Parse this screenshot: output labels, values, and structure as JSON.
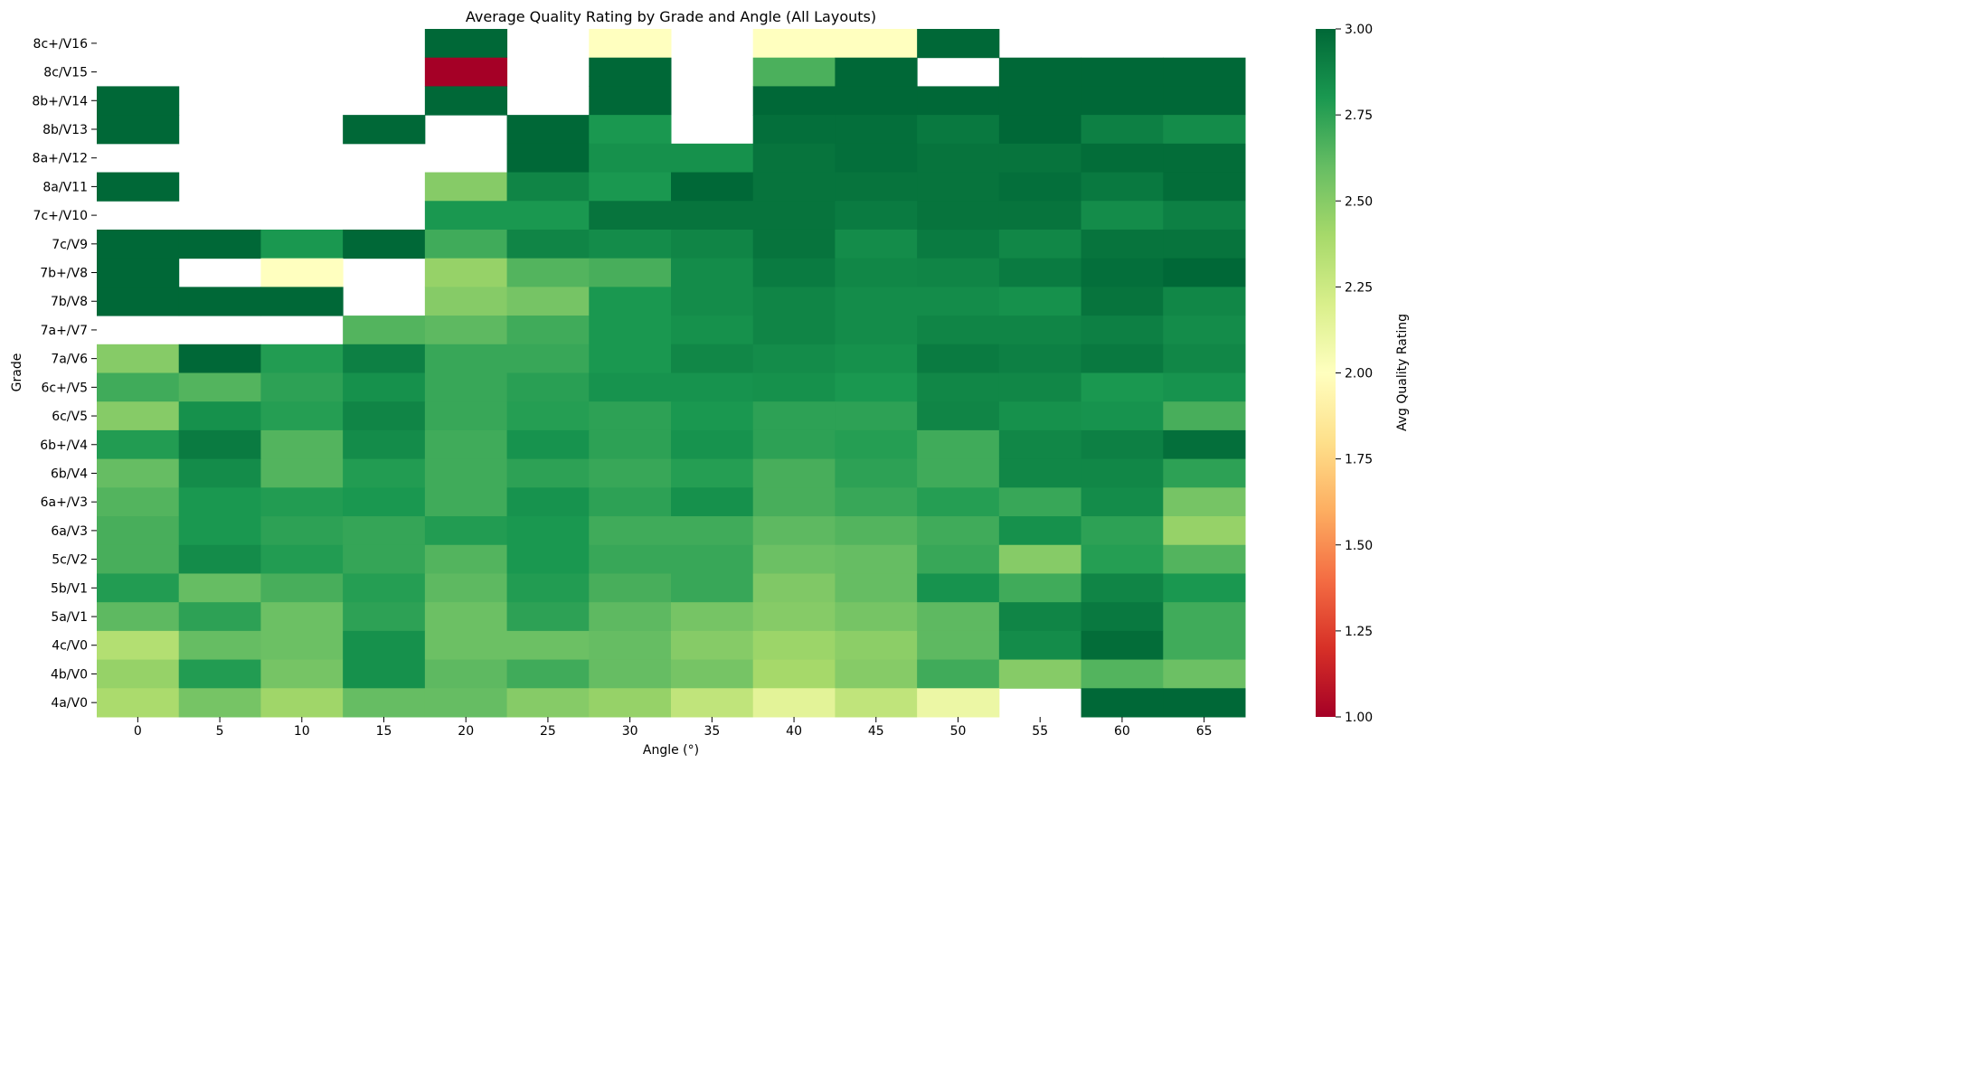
{
  "chart_data": {
    "type": "heatmap",
    "title": "Average Quality Rating by Grade and Angle (All Layouts)",
    "xlabel": "Angle (°)",
    "ylabel": "Grade",
    "x_categories": [
      "0",
      "5",
      "10",
      "15",
      "20",
      "25",
      "30",
      "35",
      "40",
      "45",
      "50",
      "55",
      "60",
      "65"
    ],
    "y_categories": [
      "8c+/V16",
      "8c/V15",
      "8b+/V14",
      "8b/V13",
      "8a+/V12",
      "8a/V11",
      "7c+/V10",
      "7c/V9",
      "7b+/V8",
      "7b/V8",
      "7a+/V7",
      "7a/V6",
      "6c+/V5",
      "6c/V5",
      "6b+/V4",
      "6b/V4",
      "6a+/V3",
      "6a/V3",
      "5c/V2",
      "5b/V1",
      "5a/V1",
      "4c/V0",
      "4b/V0",
      "4a/V0"
    ],
    "values": [
      [
        null,
        null,
        null,
        null,
        3.0,
        null,
        2.0,
        null,
        2.0,
        2.0,
        3.0,
        null,
        null,
        null
      ],
      [
        null,
        null,
        null,
        null,
        1.0,
        null,
        3.0,
        null,
        2.67,
        3.0,
        null,
        3.0,
        3.0,
        3.0
      ],
      [
        3.0,
        null,
        null,
        null,
        3.0,
        null,
        3.0,
        null,
        3.0,
        3.0,
        3.0,
        3.0,
        3.0,
        3.0
      ],
      [
        3.0,
        null,
        null,
        3.0,
        null,
        3.0,
        2.8,
        null,
        2.97,
        2.97,
        2.93,
        3.0,
        2.9,
        2.85
      ],
      [
        null,
        null,
        null,
        null,
        null,
        3.0,
        2.83,
        2.83,
        2.95,
        2.97,
        2.95,
        2.95,
        2.98,
        2.98
      ],
      [
        3.0,
        null,
        null,
        null,
        2.5,
        2.88,
        2.8,
        3.0,
        2.95,
        2.95,
        2.95,
        2.97,
        2.93,
        2.98
      ],
      [
        null,
        null,
        null,
        null,
        2.8,
        2.8,
        2.95,
        2.95,
        2.95,
        2.92,
        2.95,
        2.95,
        2.85,
        2.9
      ],
      [
        3.0,
        3.0,
        2.8,
        3.0,
        2.7,
        2.88,
        2.85,
        2.88,
        2.95,
        2.85,
        2.92,
        2.87,
        2.95,
        2.95
      ],
      [
        3.0,
        null,
        2.0,
        null,
        2.45,
        2.65,
        2.68,
        2.85,
        2.92,
        2.87,
        2.88,
        2.92,
        2.97,
        3.0
      ],
      [
        3.0,
        3.0,
        3.0,
        null,
        2.5,
        2.55,
        2.8,
        2.85,
        2.88,
        2.85,
        2.85,
        2.83,
        2.95,
        2.87
      ],
      [
        null,
        null,
        null,
        2.65,
        2.62,
        2.7,
        2.8,
        2.83,
        2.88,
        2.85,
        2.88,
        2.88,
        2.9,
        2.85
      ],
      [
        2.5,
        3.0,
        2.78,
        2.9,
        2.72,
        2.72,
        2.8,
        2.87,
        2.85,
        2.83,
        2.92,
        2.9,
        2.93,
        2.87
      ],
      [
        2.7,
        2.65,
        2.75,
        2.83,
        2.72,
        2.76,
        2.82,
        2.82,
        2.83,
        2.8,
        2.87,
        2.87,
        2.8,
        2.82
      ],
      [
        2.5,
        2.83,
        2.77,
        2.88,
        2.72,
        2.77,
        2.75,
        2.8,
        2.75,
        2.75,
        2.88,
        2.83,
        2.82,
        2.68
      ],
      [
        2.78,
        2.92,
        2.65,
        2.85,
        2.7,
        2.82,
        2.75,
        2.82,
        2.75,
        2.77,
        2.7,
        2.87,
        2.9,
        2.97
      ],
      [
        2.6,
        2.85,
        2.65,
        2.78,
        2.7,
        2.75,
        2.72,
        2.77,
        2.68,
        2.75,
        2.7,
        2.87,
        2.87,
        2.75
      ],
      [
        2.65,
        2.8,
        2.78,
        2.8,
        2.7,
        2.82,
        2.75,
        2.83,
        2.68,
        2.72,
        2.77,
        2.72,
        2.85,
        2.55
      ],
      [
        2.68,
        2.8,
        2.75,
        2.73,
        2.78,
        2.8,
        2.7,
        2.7,
        2.62,
        2.65,
        2.7,
        2.83,
        2.75,
        2.45
      ],
      [
        2.68,
        2.85,
        2.78,
        2.73,
        2.65,
        2.8,
        2.72,
        2.72,
        2.58,
        2.6,
        2.72,
        2.5,
        2.77,
        2.65
      ],
      [
        2.78,
        2.6,
        2.68,
        2.77,
        2.62,
        2.78,
        2.68,
        2.72,
        2.52,
        2.6,
        2.82,
        2.7,
        2.88,
        2.8
      ],
      [
        2.62,
        2.75,
        2.58,
        2.75,
        2.58,
        2.75,
        2.62,
        2.55,
        2.5,
        2.55,
        2.62,
        2.88,
        2.93,
        2.7
      ],
      [
        2.35,
        2.6,
        2.58,
        2.83,
        2.58,
        2.58,
        2.6,
        2.5,
        2.43,
        2.48,
        2.62,
        2.85,
        2.98,
        2.7
      ],
      [
        2.45,
        2.78,
        2.55,
        2.83,
        2.62,
        2.7,
        2.6,
        2.55,
        2.4,
        2.5,
        2.7,
        2.5,
        2.65,
        2.58
      ],
      [
        2.38,
        2.55,
        2.42,
        2.6,
        2.6,
        2.5,
        2.45,
        2.3,
        2.15,
        2.3,
        2.1,
        null,
        3.0,
        3.0
      ]
    ],
    "colormap": [
      "#a50026",
      "#d73027",
      "#f46d43",
      "#fdae61",
      "#fee08b",
      "#ffffbf",
      "#d9ef8b",
      "#a6d96a",
      "#66bd63",
      "#1a9850",
      "#006837"
    ],
    "vmin": 1.0,
    "vmax": 3.0,
    "colorbar": {
      "label": "Avg Quality Rating",
      "ticks": [
        "1.00",
        "1.25",
        "1.50",
        "1.75",
        "2.00",
        "2.25",
        "2.50",
        "2.75",
        "3.00"
      ]
    }
  }
}
